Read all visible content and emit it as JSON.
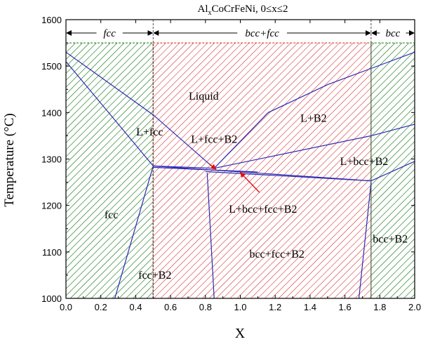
{
  "chart_data": {
    "type": "phase-diagram",
    "title_parts": [
      "Al",
      "x",
      "CoCrFeNi, 0≤x≤2"
    ],
    "xlabel": "X",
    "ylabel": "Temperature (°C)",
    "xlim": [
      0.0,
      2.0
    ],
    "ylim": [
      1000,
      1600
    ],
    "xticks": [
      "0.0",
      "0.2",
      "0.4",
      "0.6",
      "0.8",
      "1.0",
      "1.2",
      "1.4",
      "1.6",
      "1.8",
      "2.0"
    ],
    "yticks": [
      "1000",
      "1100",
      "1200",
      "1300",
      "1400",
      "1500",
      "1600"
    ],
    "colors": {
      "fcc_region": "#1a7a1a",
      "mixed_region": "#d62020",
      "phase_boundary": "#2a2ab5",
      "arrow": "#e01010"
    },
    "region_top_temperature": 1550,
    "regions": [
      {
        "name": "fcc",
        "x_range": [
          0.0,
          0.5
        ],
        "color": "green"
      },
      {
        "name": "bcc+fcc",
        "x_range": [
          0.5,
          1.75
        ],
        "color": "red"
      },
      {
        "name": "bcc",
        "x_range": [
          1.75,
          2.0
        ],
        "color": "green"
      }
    ],
    "header_labels": [
      {
        "text": "fcc",
        "x": 0.25
      },
      {
        "text": "bcc+fcc",
        "x": 1.125
      },
      {
        "text": "bcc",
        "x": 1.875
      }
    ],
    "phase_labels": [
      {
        "text": "Liquid",
        "x": 0.79,
        "y": 1435
      },
      {
        "text": "L+B2",
        "x": 1.42,
        "y": 1388
      },
      {
        "text": "L+fcc",
        "x": 0.48,
        "y": 1358
      },
      {
        "text": "L+fcc+B2",
        "x": 0.85,
        "y": 1342
      },
      {
        "text": "L+bcc+B2",
        "x": 1.71,
        "y": 1295
      },
      {
        "text": "L+bcc+fcc+B2",
        "x": 1.13,
        "y": 1192
      },
      {
        "text": "fcc",
        "x": 0.26,
        "y": 1180
      },
      {
        "text": "bcc+fcc+B2",
        "x": 1.21,
        "y": 1095
      },
      {
        "text": "bcc+B2",
        "x": 1.86,
        "y": 1128
      },
      {
        "text": "fcc+B2",
        "x": 0.51,
        "y": 1050
      }
    ],
    "phase_boundaries": [
      [
        [
          0.0,
          1530
        ],
        [
          0.5,
          1395
        ],
        [
          0.85,
          1280
        ],
        [
          1.16,
          1400
        ],
        [
          1.5,
          1460
        ],
        [
          1.75,
          1495
        ],
        [
          2.0,
          1530
        ]
      ],
      [
        [
          0.0,
          1510
        ],
        [
          0.5,
          1285
        ]
      ],
      [
        [
          0.5,
          1285
        ],
        [
          0.85,
          1280
        ]
      ],
      [
        [
          0.5,
          1285
        ],
        [
          1.75,
          1253
        ]
      ],
      [
        [
          0.5,
          1282
        ],
        [
          1.1,
          1272
        ]
      ],
      [
        [
          0.85,
          1280
        ],
        [
          1.75,
          1350
        ],
        [
          2.0,
          1375
        ]
      ],
      [
        [
          0.8,
          1273
        ],
        [
          1.75,
          1253
        ]
      ],
      [
        [
          1.75,
          1253
        ],
        [
          2.0,
          1295
        ]
      ],
      [
        [
          0.5,
          1285
        ],
        [
          0.28,
          1000
        ]
      ],
      [
        [
          0.81,
          1270
        ],
        [
          0.85,
          1000
        ]
      ],
      [
        [
          1.75,
          1250
        ],
        [
          1.68,
          1000
        ]
      ]
    ],
    "arrows": [
      {
        "from": [
          0.82,
          1290
        ],
        "to": [
          0.86,
          1278
        ]
      },
      {
        "from": [
          1.11,
          1228
        ],
        "to": [
          1.0,
          1271
        ]
      }
    ]
  }
}
